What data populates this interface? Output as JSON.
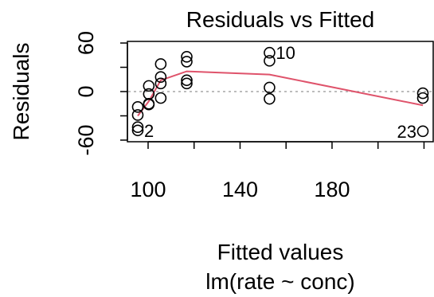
{
  "chart_data": {
    "type": "scatter",
    "title": "Residuals vs Fitted",
    "xlabel": "Fitted values",
    "xlabel_sub": "lm(rate ~ conc)",
    "ylabel": "Residuals",
    "xlim": [
      91,
      224
    ],
    "ylim": [
      -62,
      62
    ],
    "x_ticks": [
      100,
      140,
      180
    ],
    "y_ticks": [
      -60,
      0,
      60
    ],
    "reference_line": {
      "y": 0,
      "style": "dotted",
      "color": "#a6a6a6"
    },
    "points": [
      {
        "x": 95.5,
        "y": -48
      },
      {
        "x": 95.5,
        "y": -44
      },
      {
        "x": 95.5,
        "y": -29
      },
      {
        "x": 95.5,
        "y": -19
      },
      {
        "x": 100.3,
        "y": -15
      },
      {
        "x": 100.3,
        "y": -16
      },
      {
        "x": 100.3,
        "y": -3
      },
      {
        "x": 100.3,
        "y": 7
      },
      {
        "x": 105.5,
        "y": -8
      },
      {
        "x": 105.5,
        "y": 10
      },
      {
        "x": 105.5,
        "y": 18
      },
      {
        "x": 105.5,
        "y": 34
      },
      {
        "x": 116.8,
        "y": 10
      },
      {
        "x": 116.8,
        "y": 14
      },
      {
        "x": 116.8,
        "y": 37
      },
      {
        "x": 116.8,
        "y": 43
      },
      {
        "x": 152.8,
        "y": -9
      },
      {
        "x": 152.8,
        "y": 5
      },
      {
        "x": 152.8,
        "y": 38
      },
      {
        "x": 152.8,
        "y": 48
      },
      {
        "x": 219.5,
        "y": -49
      },
      {
        "x": 219.5,
        "y": -8
      },
      {
        "x": 219.5,
        "y": -2
      }
    ],
    "point_labels": [
      {
        "text": "10",
        "x": 152.8,
        "y": 48
      },
      {
        "text": "2",
        "x": 95.5,
        "y": -48
      },
      {
        "text": "23",
        "x": 219.5,
        "y": -49
      }
    ],
    "smooth_line": {
      "color": "#df536b",
      "x": [
        95.5,
        100.3,
        105.5,
        116.8,
        152.8,
        219.5
      ],
      "y": [
        -30,
        -12,
        14,
        25,
        21,
        -17
      ]
    }
  }
}
